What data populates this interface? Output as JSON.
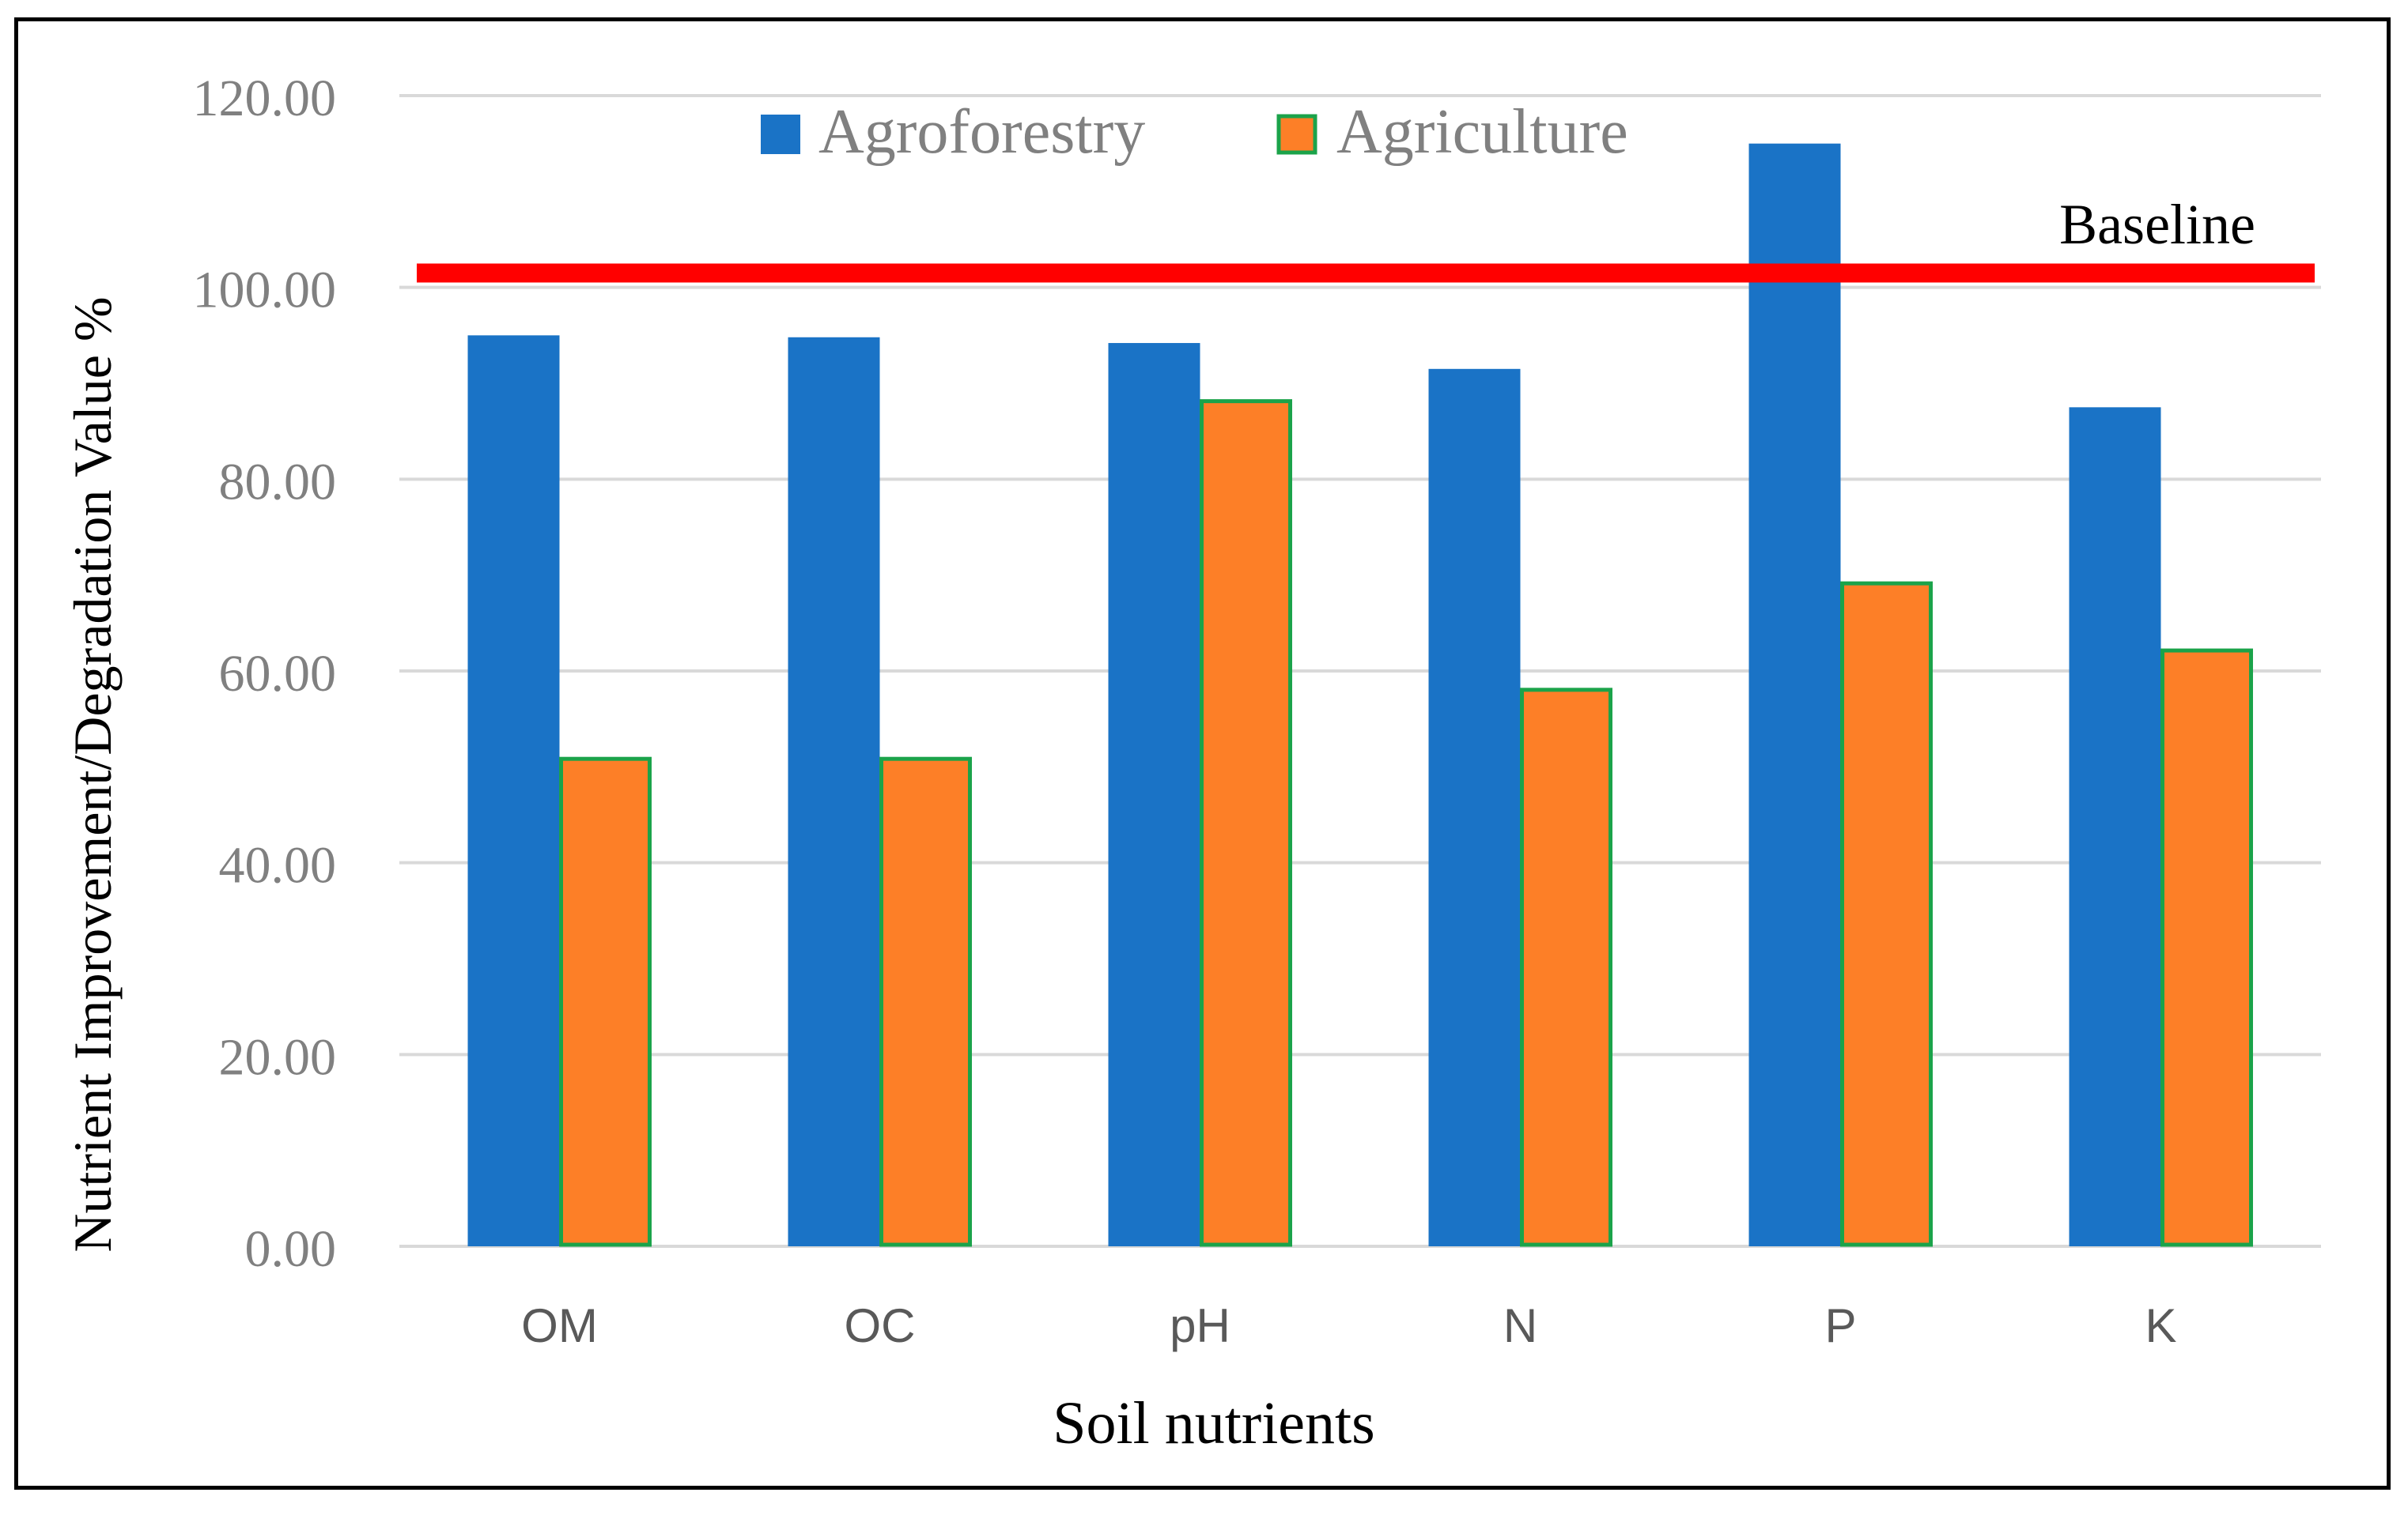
{
  "chart_data": {
    "type": "bar",
    "categories": [
      "OM",
      "OC",
      "pH",
      "N",
      "P",
      "K"
    ],
    "series": [
      {
        "name": "Agroforestry",
        "values": [
          95.0,
          94.8,
          94.2,
          91.5,
          115.0,
          87.5
        ],
        "color": "#1a73c6"
      },
      {
        "name": "Agriculture",
        "values": [
          51.0,
          51.0,
          88.3,
          58.2,
          69.3,
          62.3
        ],
        "color": "#fd7f27",
        "edge_color": "#1ba34a"
      }
    ],
    "baseline": {
      "label": "Baseline",
      "value": 101.5,
      "color": "#ff0000"
    },
    "ylim": [
      0,
      120
    ],
    "yticks": [
      "0.00",
      "20.00",
      "40.00",
      "60.00",
      "80.00",
      "100.00",
      "120.00"
    ],
    "xlabel": "Soil nutrients",
    "ylabel": "Nutrient Improvement/Degradation Value  %",
    "legend_position": "top-center",
    "grid": true
  }
}
